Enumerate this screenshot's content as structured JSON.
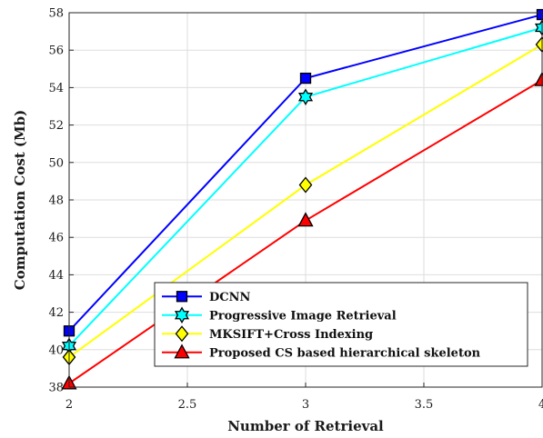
{
  "chart_data": {
    "type": "line",
    "xlabel": "Number of Retrieval",
    "ylabel": "Computation Cost (Mb)",
    "xlim": [
      2,
      4
    ],
    "ylim": [
      38,
      58
    ],
    "xticks": [
      2,
      2.5,
      3,
      3.5,
      4
    ],
    "xtick_labels": [
      "2",
      "2.5",
      "3",
      "3.5",
      "4"
    ],
    "yticks": [
      38,
      40,
      42,
      44,
      46,
      48,
      50,
      52,
      54,
      56,
      58
    ],
    "ytick_labels": [
      "38",
      "40",
      "42",
      "44",
      "46",
      "48",
      "50",
      "52",
      "54",
      "56",
      "58"
    ],
    "grid": true,
    "legend_position": "bottom-right",
    "x": [
      2,
      3,
      4
    ],
    "series": [
      {
        "name": "DCNN",
        "values": [
          41.0,
          54.5,
          57.9
        ],
        "color": "#0000ff",
        "marker": "square"
      },
      {
        "name": "Progressive Image Retrieval",
        "values": [
          40.2,
          53.5,
          57.2
        ],
        "color": "#00ffff",
        "marker": "hexagram"
      },
      {
        "name": "MKSIFT+Cross Indexing",
        "values": [
          39.6,
          48.8,
          56.3
        ],
        "color": "#ffff00",
        "marker": "diamond"
      },
      {
        "name": "Proposed CS based hierarchical skeleton",
        "values": [
          38.2,
          46.9,
          54.4
        ],
        "color": "#ff0000",
        "marker": "triangle"
      }
    ]
  }
}
